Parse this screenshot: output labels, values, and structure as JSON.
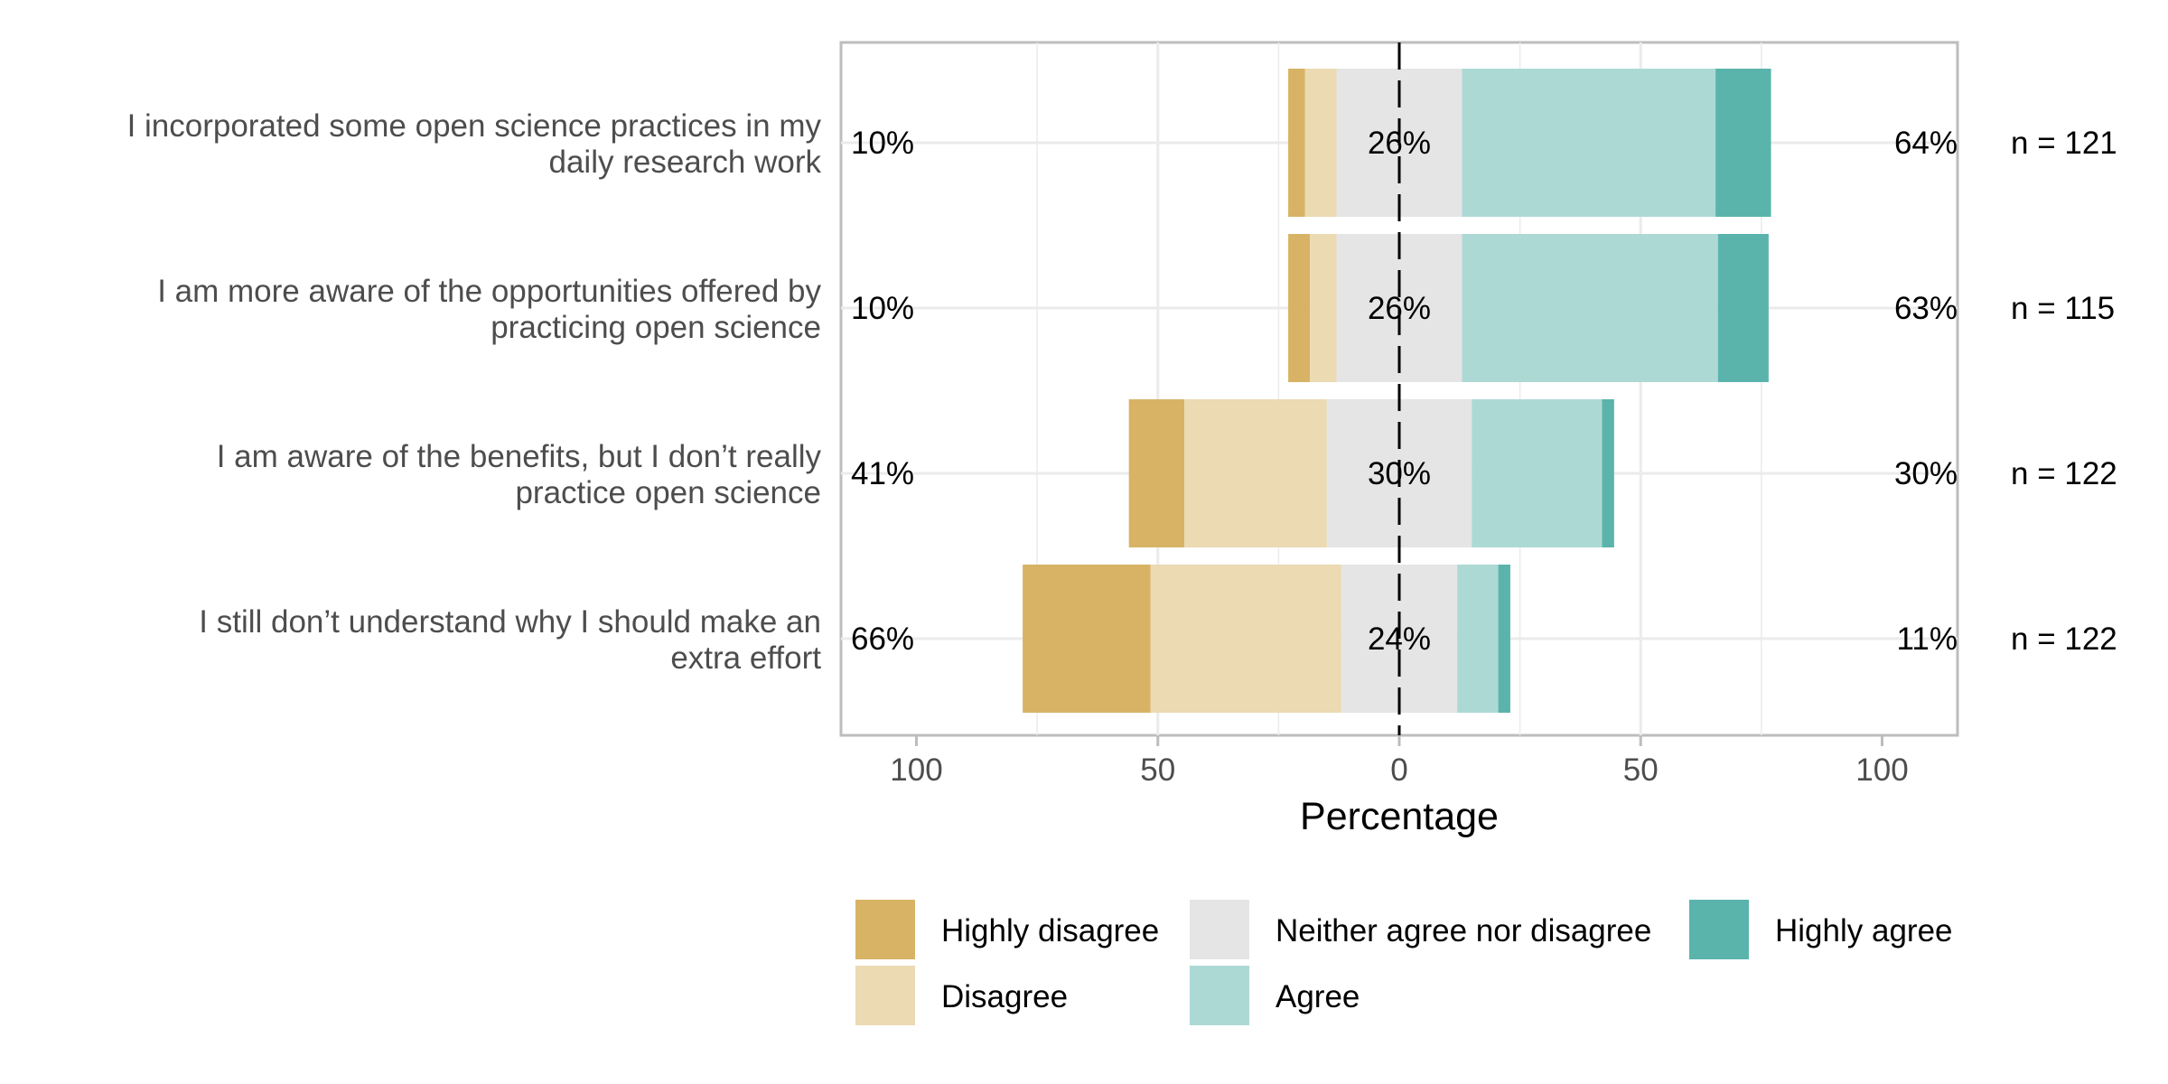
{
  "chart_data": {
    "type": "bar",
    "subtype": "diverging-stacked-likert",
    "xlabel": "Percentage",
    "xlim": [
      -100,
      100
    ],
    "xticks": [
      -100,
      -50,
      0,
      50,
      100
    ],
    "xtick_labels": [
      "100",
      "50",
      "0",
      "50",
      "100"
    ],
    "grid": true,
    "legend_position": "bottom",
    "levels": [
      "Highly disagree",
      "Disagree",
      "Neither agree nor disagree",
      "Agree",
      "Highly agree"
    ],
    "colors": {
      "Highly disagree": "#D8B365",
      "Disagree": "#EBDAB2",
      "Neither agree nor disagree": "#E5E5E5",
      "Agree": "#ADD9D5",
      "Highly agree": "#5AB4AC"
    },
    "items": [
      {
        "label": "I incorporated some open science practices in my daily research work",
        "label_lines": [
          "I incorporated some open science practices in my",
          "daily research work"
        ],
        "values": [
          3.5,
          6.5,
          26,
          52.5,
          11.5
        ],
        "left_label": "10%",
        "neutral_label": "26%",
        "right_label": "64%",
        "n_label": "n = 121"
      },
      {
        "label": "I am more aware of the opportunities offered by practicing open science",
        "label_lines": [
          "I am more aware of the opportunities offered by",
          "practicing open science"
        ],
        "values": [
          4.5,
          5.5,
          26,
          53,
          10.5
        ],
        "left_label": "10%",
        "neutral_label": "26%",
        "right_label": "63%",
        "n_label": "n = 115"
      },
      {
        "label": "I am aware of the benefits, but I don’t really practice open science",
        "label_lines": [
          "I am aware of the benefits, but I don’t really",
          "practice open science"
        ],
        "values": [
          11.5,
          29.5,
          30,
          27,
          2.5
        ],
        "left_label": "41%",
        "neutral_label": "30%",
        "right_label": "30%",
        "n_label": "n = 122"
      },
      {
        "label": "I still don’t understand why I should make an extra effort",
        "label_lines": [
          "I still don’t understand why I should make an",
          "extra effort"
        ],
        "values": [
          26.5,
          39.5,
          24,
          8.5,
          2.5
        ],
        "left_label": "66%",
        "neutral_label": "24%",
        "right_label": "11%",
        "n_label": "n = 122"
      }
    ]
  }
}
